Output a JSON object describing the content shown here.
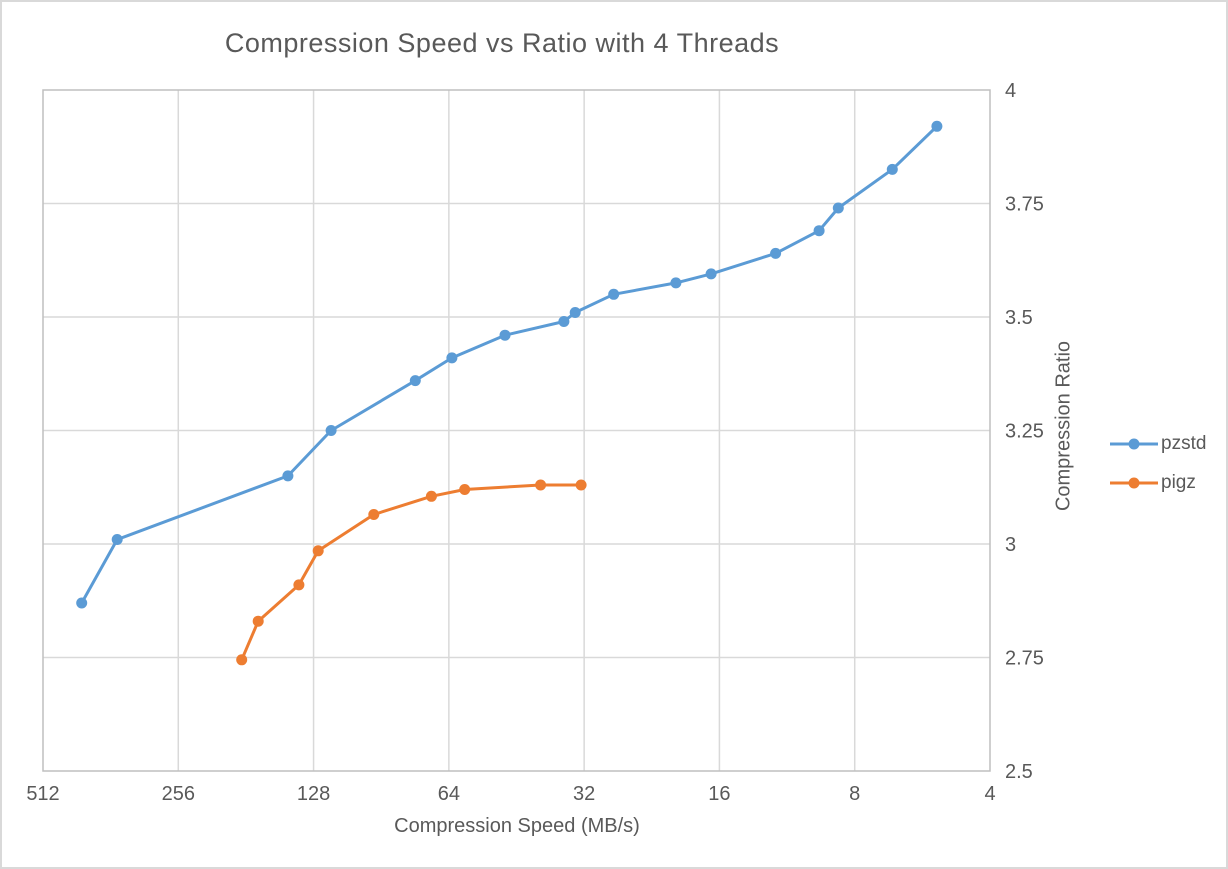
{
  "chart_data": {
    "type": "line",
    "title": "Compression Speed vs Ratio with 4 Threads",
    "xlabel": "Compression Speed (MB/s)",
    "ylabel": "Compression Ratio",
    "x_scale": "log2-reversed",
    "x_ticks": [
      512,
      256,
      128,
      64,
      32,
      16,
      8,
      4
    ],
    "x_range": [
      512,
      4
    ],
    "y_ticks": [
      4,
      3.75,
      3.5,
      3.25,
      3,
      2.75,
      2.5
    ],
    "y_range": [
      2.5,
      4
    ],
    "grid": true,
    "legend_position": "right",
    "series": [
      {
        "name": "pzstd",
        "color": "#5B9BD5",
        "points": [
          [
            420,
            2.87
          ],
          [
            350,
            3.01
          ],
          [
            146,
            3.15
          ],
          [
            117,
            3.25
          ],
          [
            76,
            3.36
          ],
          [
            63,
            3.41
          ],
          [
            48,
            3.46
          ],
          [
            35.5,
            3.49
          ],
          [
            33.5,
            3.51
          ],
          [
            27.5,
            3.55
          ],
          [
            20,
            3.575
          ],
          [
            16.7,
            3.595
          ],
          [
            12,
            3.64
          ],
          [
            9.6,
            3.69
          ],
          [
            8.7,
            3.74
          ],
          [
            6.6,
            3.825
          ],
          [
            5.25,
            3.92
          ]
        ]
      },
      {
        "name": "pigz",
        "color": "#ED7D31",
        "points": [
          [
            185,
            2.745
          ],
          [
            170,
            2.83
          ],
          [
            138,
            2.91
          ],
          [
            125,
            2.985
          ],
          [
            94,
            3.065
          ],
          [
            70,
            3.105
          ],
          [
            59,
            3.12
          ],
          [
            40,
            3.13
          ],
          [
            32.5,
            3.13
          ]
        ]
      }
    ],
    "colors": {
      "text": "#595959",
      "gridline": "#D9D9D9",
      "plot_border": "#BFBFBF",
      "background": "#FFFFFF"
    }
  }
}
